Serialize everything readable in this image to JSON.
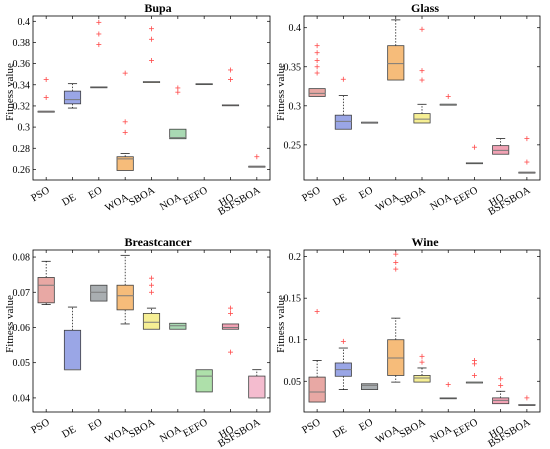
{
  "chart_data": [
    {
      "type": "box",
      "title": "Bupa",
      "ylabel": "Fitness value",
      "ylim": [
        0.25,
        0.405
      ],
      "yticks": [
        0.26,
        0.28,
        0.3,
        0.32,
        0.34,
        0.36,
        0.38,
        0.4
      ],
      "ytick_labels": [
        "0.26",
        "0.28",
        "0.3",
        "0.32",
        "0.34",
        "0.36",
        "0.38",
        "0.4"
      ],
      "categories": [
        "PSO",
        "DE",
        "EO",
        "WOA",
        "SBOA",
        "NOA",
        "EEFO",
        "HO",
        "BSFSBOA"
      ],
      "boxes": [
        {
          "min": 0.315,
          "q1": 0.315,
          "median": 0.315,
          "q3": 0.315,
          "max": 0.315,
          "outliers": [
            0.328,
            0.345
          ]
        },
        {
          "min": 0.318,
          "q1": 0.322,
          "median": 0.326,
          "q3": 0.334,
          "max": 0.341,
          "outliers": []
        },
        {
          "min": 0.338,
          "q1": 0.338,
          "median": 0.338,
          "q3": 0.338,
          "max": 0.338,
          "outliers": [
            0.378,
            0.388,
            0.399
          ]
        },
        {
          "min": 0.259,
          "q1": 0.259,
          "median": 0.27,
          "q3": 0.272,
          "max": 0.275,
          "outliers": [
            0.295,
            0.305,
            0.351
          ]
        },
        {
          "min": 0.343,
          "q1": 0.343,
          "median": 0.343,
          "q3": 0.343,
          "max": 0.343,
          "outliers": [
            0.363,
            0.383,
            0.393
          ]
        },
        {
          "min": 0.289,
          "q1": 0.289,
          "median": 0.29,
          "q3": 0.298,
          "max": 0.298,
          "outliers": [
            0.333,
            0.337
          ]
        },
        {
          "min": 0.341,
          "q1": 0.341,
          "median": 0.341,
          "q3": 0.341,
          "max": 0.341,
          "outliers": []
        },
        {
          "min": 0.321,
          "q1": 0.321,
          "median": 0.321,
          "q3": 0.321,
          "max": 0.321,
          "outliers": [
            0.345,
            0.354
          ]
        },
        {
          "min": 0.263,
          "q1": 0.263,
          "median": 0.263,
          "q3": 0.263,
          "max": 0.263,
          "outliers": [
            0.272
          ]
        }
      ]
    },
    {
      "type": "box",
      "title": "Glass",
      "ylabel": "Fitness value",
      "ylim": [
        0.205,
        0.415
      ],
      "yticks": [
        0.25,
        0.3,
        0.35,
        0.4
      ],
      "ytick_labels": [
        "0.25",
        "0.3",
        "0.35",
        "0.4"
      ],
      "categories": [
        "PSO",
        "DE",
        "EO",
        "WOA",
        "SBOA",
        "NOA",
        "EEFO",
        "HO",
        "BSFSBOA"
      ],
      "boxes": [
        {
          "min": 0.312,
          "q1": 0.312,
          "median": 0.316,
          "q3": 0.322,
          "max": 0.322,
          "outliers": [
            0.342,
            0.35,
            0.358,
            0.368,
            0.377
          ]
        },
        {
          "min": 0.27,
          "q1": 0.27,
          "median": 0.28,
          "q3": 0.288,
          "max": 0.313,
          "outliers": [
            0.334
          ]
        },
        {
          "min": 0.279,
          "q1": 0.279,
          "median": 0.279,
          "q3": 0.279,
          "max": 0.279,
          "outliers": []
        },
        {
          "min": 0.333,
          "q1": 0.333,
          "median": 0.354,
          "q3": 0.377,
          "max": 0.41,
          "outliers": []
        },
        {
          "min": 0.278,
          "q1": 0.278,
          "median": 0.283,
          "q3": 0.29,
          "max": 0.302,
          "outliers": [
            0.333,
            0.345,
            0.398
          ]
        },
        {
          "min": 0.302,
          "q1": 0.302,
          "median": 0.302,
          "q3": 0.302,
          "max": 0.302,
          "outliers": [
            0.312
          ]
        },
        {
          "min": 0.227,
          "q1": 0.227,
          "median": 0.227,
          "q3": 0.227,
          "max": 0.227,
          "outliers": [
            0.247
          ]
        },
        {
          "min": 0.238,
          "q1": 0.238,
          "median": 0.243,
          "q3": 0.249,
          "max": 0.258,
          "outliers": []
        },
        {
          "min": 0.215,
          "q1": 0.215,
          "median": 0.215,
          "q3": 0.215,
          "max": 0.215,
          "outliers": [
            0.228,
            0.258
          ]
        }
      ]
    },
    {
      "type": "box",
      "title": "Breastcancer",
      "ylabel": "Fitness value",
      "ylim": [
        0.036,
        0.082
      ],
      "yticks": [
        0.04,
        0.05,
        0.06,
        0.07,
        0.08
      ],
      "ytick_labels": [
        "0.04",
        "0.05",
        "0.06",
        "0.07",
        "0.08"
      ],
      "categories": [
        "PSO",
        "DE",
        "EO",
        "WOA",
        "SBOA",
        "NOA",
        "EEFO",
        "HO",
        "BSFSBOA"
      ],
      "boxes": [
        {
          "min": 0.0665,
          "q1": 0.067,
          "median": 0.072,
          "q3": 0.0742,
          "max": 0.0788,
          "outliers": []
        },
        {
          "min": 0.048,
          "q1": 0.048,
          "median": 0.048,
          "q3": 0.0592,
          "max": 0.0658,
          "outliers": []
        },
        {
          "min": 0.0675,
          "q1": 0.0675,
          "median": 0.07,
          "q3": 0.072,
          "max": 0.072,
          "outliers": []
        },
        {
          "min": 0.061,
          "q1": 0.065,
          "median": 0.069,
          "q3": 0.072,
          "max": 0.0805,
          "outliers": []
        },
        {
          "min": 0.0595,
          "q1": 0.0595,
          "median": 0.0615,
          "q3": 0.064,
          "max": 0.0655,
          "outliers": [
            0.07,
            0.072,
            0.074
          ]
        },
        {
          "min": 0.0595,
          "q1": 0.0595,
          "median": 0.0605,
          "q3": 0.0612,
          "max": 0.0612,
          "outliers": []
        },
        {
          "min": 0.0417,
          "q1": 0.0417,
          "median": 0.0462,
          "q3": 0.048,
          "max": 0.048,
          "outliers": []
        },
        {
          "min": 0.0595,
          "q1": 0.0595,
          "median": 0.06,
          "q3": 0.061,
          "max": 0.061,
          "outliers": [
            0.053,
            0.064,
            0.0655
          ]
        },
        {
          "min": 0.04,
          "q1": 0.04,
          "median": 0.04,
          "q3": 0.0462,
          "max": 0.048,
          "outliers": []
        }
      ]
    },
    {
      "type": "box",
      "title": "Wine",
      "ylabel": "Fitness value",
      "ylim": [
        0.013,
        0.208
      ],
      "yticks": [
        0.05,
        0.1,
        0.15,
        0.2
      ],
      "ytick_labels": [
        "0.05",
        "0.1",
        "0.15",
        "0.2"
      ],
      "categories": [
        "PSO",
        "DE",
        "EO",
        "WOA",
        "SBOA",
        "NOA",
        "EEFO",
        "HO",
        "BSFSBOA"
      ],
      "boxes": [
        {
          "min": 0.025,
          "q1": 0.025,
          "median": 0.037,
          "q3": 0.055,
          "max": 0.075,
          "outliers": [
            0.134
          ]
        },
        {
          "min": 0.04,
          "q1": 0.056,
          "median": 0.064,
          "q3": 0.072,
          "max": 0.09,
          "outliers": [
            0.098
          ]
        },
        {
          "min": 0.04,
          "q1": 0.04,
          "median": 0.045,
          "q3": 0.047,
          "max": 0.047,
          "outliers": []
        },
        {
          "min": 0.049,
          "q1": 0.057,
          "median": 0.078,
          "q3": 0.1,
          "max": 0.126,
          "outliers": [
            0.185,
            0.193,
            0.203
          ]
        },
        {
          "min": 0.049,
          "q1": 0.049,
          "median": 0.054,
          "q3": 0.057,
          "max": 0.066,
          "outliers": [
            0.073,
            0.08
          ]
        },
        {
          "min": 0.03,
          "q1": 0.03,
          "median": 0.03,
          "q3": 0.03,
          "max": 0.03,
          "outliers": [
            0.046
          ]
        },
        {
          "min": 0.049,
          "q1": 0.049,
          "median": 0.049,
          "q3": 0.049,
          "max": 0.049,
          "outliers": [
            0.057,
            0.071,
            0.075
          ]
        },
        {
          "min": 0.023,
          "q1": 0.023,
          "median": 0.027,
          "q3": 0.03,
          "max": 0.038,
          "outliers": [
            0.045,
            0.053
          ]
        },
        {
          "min": 0.022,
          "q1": 0.022,
          "median": 0.022,
          "q3": 0.022,
          "max": 0.022,
          "outliers": [
            0.03
          ]
        }
      ]
    }
  ],
  "colors": {
    "box_fills": [
      "#e8a8a4",
      "#9aa6e6",
      "#a9aeb1",
      "#f6bc7a",
      "#f6ef94",
      "#a9d9b3",
      "#aee0aa",
      "#f1a2b4",
      "#f4bccf"
    ],
    "box_edge": "#404040",
    "median": "#7a7a7a",
    "whisker": "#000000",
    "outlier": "#ff4a4a"
  }
}
